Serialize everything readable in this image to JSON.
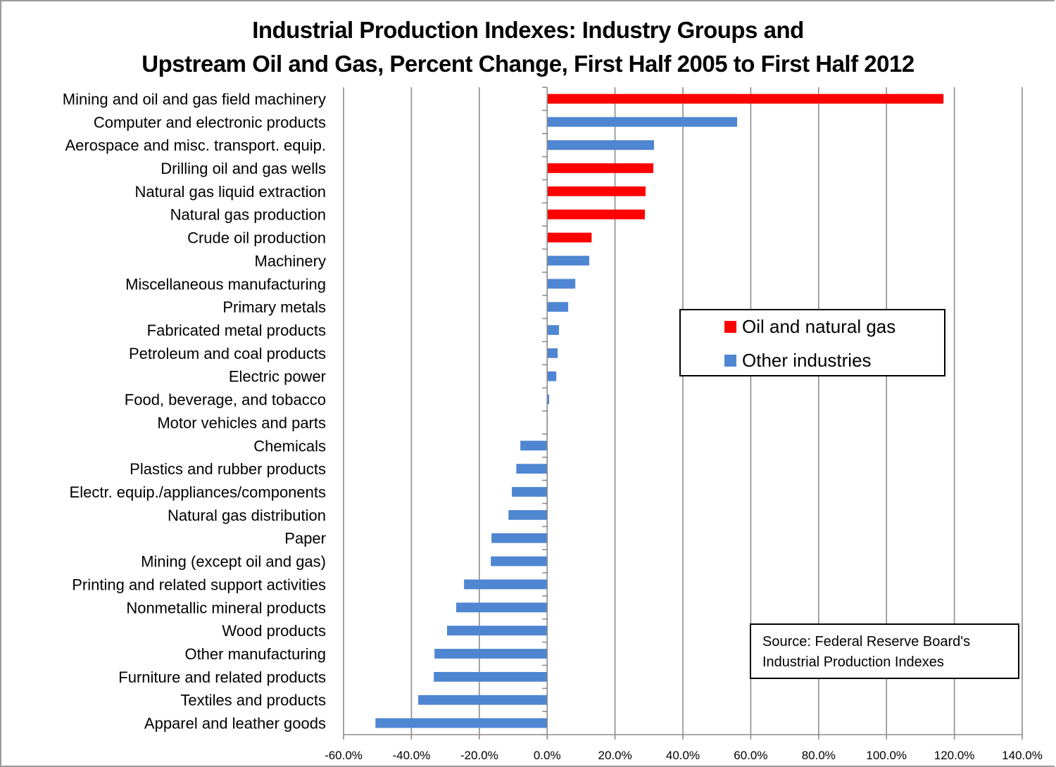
{
  "chart_data": {
    "type": "bar",
    "orientation": "horizontal",
    "title": "Industrial Production Indexes:  Industry Groups and",
    "subtitle": "Upstream Oil and Gas, Percent Change, First Half 2005 to First Half 2012",
    "xlabel": "",
    "ylabel": "",
    "xlim": [
      -60,
      140
    ],
    "x_ticks": [
      "-60.0%",
      "-40.0%",
      "-20.0%",
      "0.0%",
      "20.0%",
      "40.0%",
      "60.0%",
      "80.0%",
      "100.0%",
      "120.0%",
      "140.0%"
    ],
    "x_tick_values": [
      -60,
      -40,
      -20,
      0,
      20,
      40,
      60,
      80,
      100,
      120,
      140
    ],
    "grid": "vertical",
    "legend_position": "center-right",
    "legend": [
      {
        "name": "Oil and natural gas",
        "color": "#ff0000"
      },
      {
        "name": "Other industries",
        "color": "#4f86d1"
      }
    ],
    "categories": [
      "Mining and oil and gas field machinery",
      "Computer and electronic products",
      "Aerospace and misc. transport. equip.",
      "Drilling oil and gas wells",
      "Natural gas liquid extraction",
      "Natural gas production",
      "Crude oil production",
      "Machinery",
      "Miscellaneous manufacturing",
      "Primary metals",
      "Fabricated metal products",
      "Petroleum and coal products",
      "Electric power ",
      "Food, beverage, and tobacco",
      "Motor vehicles and parts",
      "Chemicals",
      "Plastics and rubber products",
      "Electr. equip./appliances/components",
      "Natural gas distribution",
      "Paper",
      "Mining (except oil and gas)",
      "Printing and related support activities",
      "Nonmetallic mineral products",
      "Wood products",
      "Other manufacturing",
      "Furniture and related products",
      "Textiles and products",
      "Apparel and leather goods"
    ],
    "values": [
      116.8,
      56.0,
      31.5,
      31.3,
      29.0,
      28.8,
      13.1,
      12.4,
      8.3,
      6.2,
      3.5,
      3.1,
      2.7,
      0.6,
      0.2,
      -7.9,
      -9.1,
      -10.4,
      -11.4,
      -16.4,
      -16.6,
      -24.5,
      -26.8,
      -29.5,
      -33.2,
      -33.4,
      -38.0,
      -50.6
    ],
    "groups": [
      "oil",
      "other",
      "other",
      "oil",
      "oil",
      "oil",
      "oil",
      "other",
      "other",
      "other",
      "other",
      "other",
      "other",
      "other",
      "other",
      "other",
      "other",
      "other",
      "other",
      "other",
      "other",
      "other",
      "other",
      "other",
      "other",
      "other",
      "other",
      "other"
    ],
    "annotation": "Source:  Federal Reserve Board's Industrial Production Indexes"
  },
  "legend": {
    "oil_label": "Oil and natural gas",
    "other_label": "Other industries"
  },
  "source": {
    "line1": "Source:  Federal Reserve Board's",
    "line2": "Industrial Production Indexes"
  },
  "colors": {
    "oil": "#ff0000",
    "other": "#4f86d1",
    "grid": "#8c8c8c"
  }
}
